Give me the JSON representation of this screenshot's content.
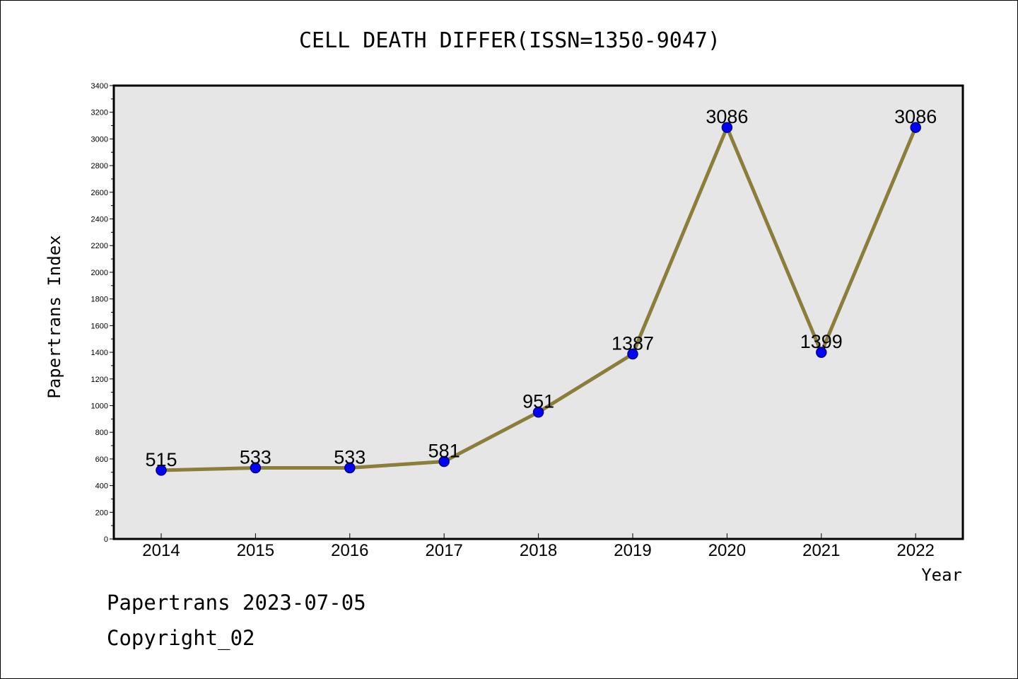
{
  "chart_data": {
    "type": "line",
    "title": "CELL DEATH DIFFER(ISSN=1350-9047)",
    "xlabel": "Year",
    "ylabel": "Papertrans Index",
    "categories": [
      "2014",
      "2015",
      "2016",
      "2017",
      "2018",
      "2019",
      "2020",
      "2021",
      "2022"
    ],
    "series": [
      {
        "values": [
          515,
          533,
          533,
          581,
          951,
          1387,
          3086,
          1399,
          3086
        ]
      }
    ],
    "ylim": [
      0,
      3400
    ],
    "yticks": [
      0,
      200,
      400,
      600,
      800,
      1000,
      1200,
      1400,
      1600,
      1800,
      2000,
      2200,
      2400,
      2600,
      2800,
      3000,
      3200,
      3400
    ],
    "grid": false,
    "legend": "none",
    "colors": {
      "line": "#8b7d3a",
      "marker_fill": "#0000ff",
      "marker_stroke": "#000080",
      "plot_background": "#e6e6e6",
      "axis": "#000000"
    }
  },
  "footer": {
    "date_line": "Papertrans 2023-07-05",
    "copyright_line": "Copyright_02"
  }
}
